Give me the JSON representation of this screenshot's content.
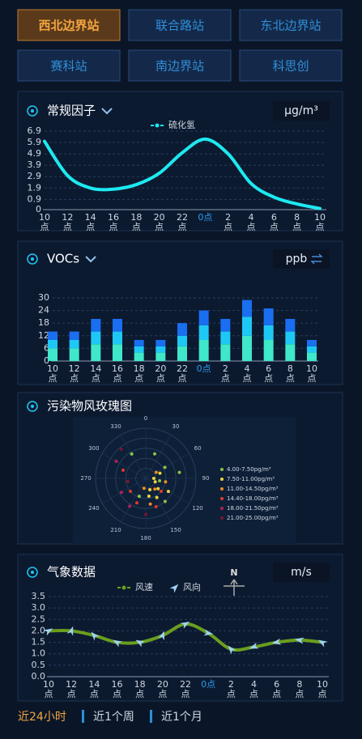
{
  "stations": [
    "西北边界站",
    "联合路站",
    "东北边界站",
    "赛科站",
    "南边界站",
    "科思创"
  ],
  "active_station": 0,
  "chart_data": [
    {
      "type": "line",
      "title": "常规因子",
      "unit": "µg/m³",
      "categories": [
        "10点",
        "12点",
        "14点",
        "16点",
        "18点",
        "20点",
        "22点",
        "0点",
        "2点",
        "4点",
        "6点",
        "8点",
        "10点"
      ],
      "highlight_category": 7,
      "series": [
        {
          "name": "硫化氢",
          "color": "#1de9f0",
          "values": [
            6.0,
            3.0,
            1.9,
            1.8,
            2.2,
            3.2,
            5.0,
            6.2,
            4.9,
            2.3,
            1.1,
            0.5,
            0.1
          ]
        }
      ],
      "ylim": [
        0,
        6.9
      ],
      "yticks": [
        0.0,
        0.9,
        1.9,
        2.9,
        3.9,
        4.9,
        5.9,
        6.9
      ],
      "grid": true
    },
    {
      "type": "stacked_bar",
      "title": "VOCs",
      "unit": "ppb",
      "categories": [
        "10点",
        "12点",
        "14点",
        "16点",
        "18点",
        "20点",
        "22点",
        "0点",
        "2点",
        "4点",
        "6点",
        "8点",
        "10点"
      ],
      "highlight_category": 7,
      "series": [
        {
          "color": "#3ee8c8",
          "values": [
            6,
            6,
            8,
            8,
            4,
            4,
            7,
            10,
            8,
            12,
            10,
            8,
            4
          ]
        },
        {
          "color": "#1ec8f5",
          "values": [
            4,
            4,
            6,
            6,
            3,
            3,
            5,
            7,
            6,
            9,
            7,
            6,
            3
          ]
        },
        {
          "color": "#1a6ef0",
          "values": [
            4,
            4,
            6,
            6,
            3,
            3,
            6,
            7,
            6,
            8,
            8,
            6,
            3
          ]
        }
      ],
      "ylim": [
        0,
        30
      ],
      "yticks": [
        0,
        6,
        12,
        18,
        24,
        30
      ],
      "grid": true
    },
    {
      "type": "polar_scatter",
      "title": "污染物风玫瑰图",
      "angle_ticks": [
        0,
        30,
        60,
        90,
        120,
        150,
        180,
        210,
        240,
        270,
        300,
        330
      ],
      "rlim": [
        0,
        5
      ],
      "series": [
        {
          "name": "4.00-7.50pg/m³",
          "color": "#8bc34a",
          "points": [
            [
              20,
              2.6
            ],
            [
              60,
              2.2
            ],
            [
              100,
              1.4
            ],
            [
              140,
              3.0
            ],
            [
              200,
              1.9
            ],
            [
              80,
              3.4
            ],
            [
              330,
              2.8
            ]
          ]
        },
        {
          "name": "7.50-11.00pg/m³",
          "color": "#f0d23c",
          "points": [
            [
              110,
              1.0
            ],
            [
              130,
              1.6
            ],
            [
              160,
              1.2
            ],
            [
              90,
              0.8
            ],
            [
              150,
              2.2
            ],
            [
              120,
              2.6
            ],
            [
              170,
              1.8
            ],
            [
              70,
              1.5
            ]
          ]
        },
        {
          "name": "11.00-14.50pg/m³",
          "color": "#f08a24",
          "points": [
            [
              100,
              2.0
            ],
            [
              140,
              1.4
            ],
            [
              170,
              2.6
            ],
            [
              60,
              1.2
            ],
            [
              190,
              1.0
            ]
          ]
        },
        {
          "name": "14.40-18.00pg/m³",
          "color": "#e03a2a",
          "points": [
            [
              200,
              2.6
            ],
            [
              230,
              2.0
            ],
            [
              290,
              2.4
            ],
            [
              130,
              2.0
            ],
            [
              160,
              3.0
            ]
          ]
        },
        {
          "name": "18.00-21.50pg/m³",
          "color": "#b0205a",
          "points": [
            [
              240,
              2.8
            ],
            [
              300,
              3.4
            ],
            [
              210,
              3.2
            ]
          ]
        },
        {
          "name": "21.00-25.00pg/m³",
          "color": "#7a1530",
          "points": [
            [
              260,
              1.8
            ],
            [
              320,
              3.8
            ],
            [
              180,
              3.6
            ]
          ]
        }
      ]
    },
    {
      "type": "wind_line",
      "title": "气象数据",
      "unit": "m/s",
      "compass": "N",
      "categories": [
        "10点",
        "12点",
        "14点",
        "16点",
        "18点",
        "20点",
        "22点",
        "0点",
        "2点",
        "4点",
        "6点",
        "8点",
        "10点"
      ],
      "highlight_category": 7,
      "series": [
        {
          "name": "风速",
          "color": "#6a9e1f",
          "values": [
            2.0,
            2.0,
            1.8,
            1.5,
            1.5,
            1.8,
            2.3,
            1.9,
            1.2,
            1.3,
            1.5,
            1.6,
            1.5
          ]
        }
      ],
      "direction": {
        "name": "风向",
        "color": "#9fd3f0",
        "values": [
          60,
          20,
          320,
          300,
          300,
          20,
          60,
          100,
          320,
          250,
          260,
          280,
          300
        ]
      },
      "ylim": [
        0,
        3.5
      ],
      "yticks": [
        {
          "value": 0,
          "label": "0.0"
        },
        0.5,
        {
          "value": 1,
          "label": "1.0"
        },
        1.5,
        {
          "value": 2,
          "label": "2.0"
        },
        2.5,
        {
          "value": 3,
          "label": "3.0"
        },
        3.5
      ],
      "grid": true
    }
  ],
  "tabs": [
    "近24小时",
    "近1个周",
    "近1个月"
  ],
  "active_tab": 0
}
